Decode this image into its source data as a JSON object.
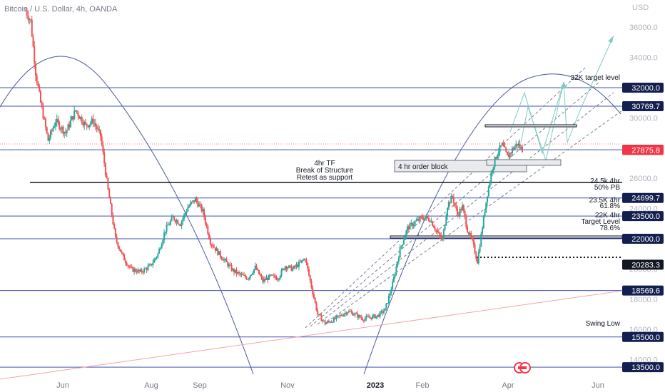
{
  "header": {
    "title": "Bitcoin / U.S. Dollar, 4h, OANDA",
    "currency": "USD"
  },
  "chart_data": {
    "type": "candlestick",
    "ylim": [
      12800,
      37800
    ],
    "yticks": [
      14000,
      16000,
      18000,
      20000,
      22000,
      24000,
      26000,
      28000,
      30000,
      32000,
      34000,
      36000
    ],
    "xticks": [
      {
        "label": "Jun",
        "bold": false
      },
      {
        "label": "Aug",
        "bold": false
      },
      {
        "label": "Sep",
        "bold": false
      },
      {
        "label": "Nov",
        "bold": false
      },
      {
        "label": "2023",
        "bold": true
      },
      {
        "label": "Feb",
        "bold": false
      },
      {
        "label": "Apr",
        "bold": false
      },
      {
        "label": "Jun",
        "bold": false
      }
    ],
    "series_path": [
      [
        0,
        37100
      ],
      [
        2,
        36400
      ],
      [
        4,
        33000
      ],
      [
        6,
        31000
      ],
      [
        9,
        28500
      ],
      [
        12,
        29800
      ],
      [
        16,
        29000
      ],
      [
        20,
        30500
      ],
      [
        24,
        29500
      ],
      [
        27,
        29800
      ],
      [
        30,
        28800
      ],
      [
        33,
        25200
      ],
      [
        36,
        22000
      ],
      [
        39,
        20800
      ],
      [
        42,
        20000
      ],
      [
        46,
        19800
      ],
      [
        50,
        20200
      ],
      [
        53,
        21000
      ],
      [
        56,
        22600
      ],
      [
        59,
        23400
      ],
      [
        62,
        23000
      ],
      [
        65,
        24100
      ],
      [
        68,
        24600
      ],
      [
        71,
        23800
      ],
      [
        74,
        21800
      ],
      [
        77,
        21100
      ],
      [
        80,
        20500
      ],
      [
        83,
        19900
      ],
      [
        86,
        19600
      ],
      [
        89,
        19400
      ],
      [
        92,
        20100
      ],
      [
        95,
        19200
      ],
      [
        98,
        19500
      ],
      [
        101,
        19400
      ],
      [
        104,
        20200
      ],
      [
        107,
        20000
      ],
      [
        110,
        20400
      ],
      [
        112,
        20700
      ],
      [
        114,
        19200
      ],
      [
        117,
        17000
      ],
      [
        120,
        16400
      ],
      [
        123,
        16600
      ],
      [
        126,
        16900
      ],
      [
        129,
        17200
      ],
      [
        132,
        17000
      ],
      [
        135,
        16700
      ],
      [
        138,
        16800
      ],
      [
        141,
        16900
      ],
      [
        144,
        17300
      ],
      [
        147,
        19000
      ],
      [
        150,
        21300
      ],
      [
        153,
        22700
      ],
      [
        156,
        23100
      ],
      [
        159,
        23400
      ],
      [
        162,
        23300
      ],
      [
        165,
        22400
      ],
      [
        167,
        21900
      ],
      [
        169,
        24200
      ],
      [
        171,
        24800
      ],
      [
        173,
        23600
      ],
      [
        175,
        24100
      ],
      [
        177,
        22600
      ],
      [
        179,
        21800
      ],
      [
        181,
        20500
      ],
      [
        183,
        22800
      ],
      [
        185,
        25000
      ],
      [
        187,
        26700
      ],
      [
        189,
        27700
      ],
      [
        191,
        28200
      ],
      [
        193,
        27400
      ],
      [
        195,
        27900
      ],
      [
        197,
        28300
      ],
      [
        199,
        27900
      ]
    ],
    "horizontal_levels": [
      {
        "value": 32000,
        "label": "32000.0"
      },
      {
        "value": 30769.7,
        "label": "30769.7"
      },
      {
        "value": 27889,
        "label": "27889.0"
      },
      {
        "value": 24699.7,
        "label": "24699.7"
      },
      {
        "value": 23500,
        "label": "23500.0"
      },
      {
        "value": 22000,
        "label": "22000.0"
      },
      {
        "value": 18569.6,
        "label": "18569.6"
      },
      {
        "value": 15500,
        "label": "15500.0"
      },
      {
        "value": 13500,
        "label": "13500.0"
      }
    ],
    "current_price": {
      "value": 27875.8,
      "label": "27875.8"
    },
    "swing_low_price": {
      "value": 20283.3,
      "label": "20283.3"
    },
    "annotations": {
      "structure": [
        "4hr TF",
        "Break of Structure",
        "Retest as support"
      ],
      "order_block": "4 hr order block",
      "target_32k": "32K target level",
      "pb50": [
        "24.5k 4hr",
        "50% PB"
      ],
      "fib618": [
        "23.5K 4hr",
        "61.8%"
      ],
      "fib786": [
        "22K 4hr",
        "Target Level",
        "78.6%"
      ],
      "swing_low": "Swing Low"
    },
    "colors": {
      "up": "#26a69a",
      "down": "#ef5350",
      "levels": "#3f51b5",
      "badge": "#131f4f",
      "current": "#f23645",
      "channel": "#7d8093",
      "projection": "#80cbc4",
      "trendline": "#f7a3a8"
    }
  }
}
